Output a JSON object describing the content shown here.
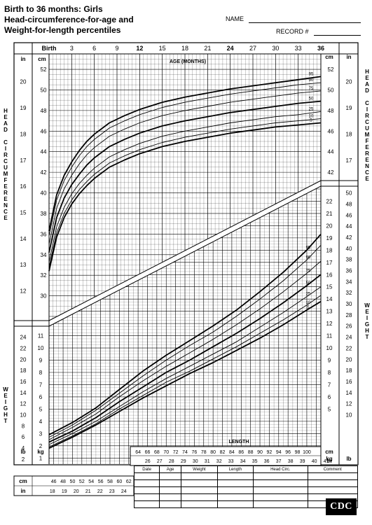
{
  "header": {
    "title_lines": [
      "Birth to 36 months: Girls",
      "Head-circumference-for-age and",
      "Weight-for-length percentiles"
    ],
    "name_label": "NAME",
    "record_label": "RECORD #"
  },
  "side_labels": {
    "head_circumference": "HEAD CIRCUMFERENCE",
    "weight": "WEIGHT"
  },
  "record_table": {
    "columns": [
      "Date",
      "Age",
      "Weight",
      "Length",
      "Head Circ.",
      "Comment"
    ],
    "row_count": 5
  },
  "logo": {
    "text": "CDC"
  },
  "chart_data": [
    {
      "type": "line",
      "title": "Head-circumference-for-age",
      "xlabel": "AGE (MONTHS)",
      "x_unit": "months",
      "xlim": [
        0,
        36
      ],
      "x_ticks": [
        {
          "value": 0,
          "label": "Birth"
        },
        {
          "value": 3,
          "label": "3"
        },
        {
          "value": 6,
          "label": "6"
        },
        {
          "value": 9,
          "label": "9"
        },
        {
          "value": 12,
          "label": "12"
        },
        {
          "value": 15,
          "label": "15"
        },
        {
          "value": 18,
          "label": "18"
        },
        {
          "value": 21,
          "label": "21"
        },
        {
          "value": 24,
          "label": "24"
        },
        {
          "value": 27,
          "label": "27"
        },
        {
          "value": 30,
          "label": "30"
        },
        {
          "value": 33,
          "label": "33"
        },
        {
          "value": 36,
          "label": "36"
        }
      ],
      "y_cm_ticks": [
        30,
        32,
        34,
        36,
        38,
        40,
        42,
        44,
        46,
        48,
        50,
        52
      ],
      "y_in_ticks": [
        12,
        13,
        14,
        15,
        16,
        17,
        18,
        19,
        20
      ],
      "y_cm_label": "cm",
      "y_in_label": "in",
      "ylim_cm": [
        28,
        53.5
      ],
      "grid": true,
      "x": [
        0,
        1,
        2,
        3,
        4,
        5,
        6,
        8,
        10,
        12,
        15,
        18,
        21,
        24,
        27,
        30,
        33,
        36
      ],
      "series": [
        {
          "name": "95",
          "values": [
            36.3,
            39.8,
            41.7,
            43.0,
            44.1,
            45.0,
            45.7,
            46.8,
            47.5,
            48.1,
            48.8,
            49.3,
            49.7,
            50.1,
            50.4,
            50.7,
            51.0,
            51.3
          ]
        },
        {
          "name": "90",
          "values": [
            35.8,
            39.3,
            41.2,
            42.5,
            43.6,
            44.5,
            45.2,
            46.3,
            47.0,
            47.6,
            48.3,
            48.8,
            49.2,
            49.6,
            49.9,
            50.2,
            50.5,
            50.7
          ]
        },
        {
          "name": "75",
          "values": [
            35.0,
            38.5,
            40.4,
            41.7,
            42.8,
            43.7,
            44.4,
            45.5,
            46.2,
            46.8,
            47.5,
            48.0,
            48.4,
            48.8,
            49.1,
            49.4,
            49.7,
            49.9
          ]
        },
        {
          "name": "50",
          "values": [
            34.2,
            37.6,
            39.5,
            40.8,
            41.8,
            42.7,
            43.4,
            44.5,
            45.2,
            45.8,
            46.5,
            47.0,
            47.4,
            47.8,
            48.1,
            48.4,
            48.7,
            48.9
          ]
        },
        {
          "name": "25",
          "values": [
            33.3,
            36.7,
            38.6,
            39.9,
            40.9,
            41.7,
            42.4,
            43.5,
            44.2,
            44.8,
            45.5,
            46.0,
            46.4,
            46.8,
            47.1,
            47.4,
            47.6,
            47.9
          ]
        },
        {
          "name": "10",
          "values": [
            32.8,
            36.1,
            38.0,
            39.3,
            40.3,
            41.1,
            41.8,
            42.9,
            43.6,
            44.2,
            44.9,
            45.4,
            45.8,
            46.2,
            46.5,
            46.8,
            47.0,
            47.2
          ]
        },
        {
          "name": "5",
          "values": [
            32.4,
            35.7,
            37.6,
            38.9,
            39.9,
            40.7,
            41.4,
            42.5,
            43.2,
            43.8,
            44.5,
            45.0,
            45.4,
            45.8,
            46.1,
            46.4,
            46.6,
            46.8
          ]
        }
      ]
    },
    {
      "type": "line",
      "title": "Weight-for-length",
      "xlabel": "LENGTH",
      "x_unit": "cm",
      "xlim": [
        45,
        103
      ],
      "x_cm_ticks_bottom": [
        46,
        48,
        50,
        52,
        54,
        56,
        58,
        60,
        62
      ],
      "x_in_ticks_bottom": [
        18,
        19,
        20,
        21,
        22,
        23,
        24
      ],
      "x_cm_ticks_top": [
        64,
        66,
        68,
        70,
        72,
        74,
        76,
        78,
        80,
        82,
        84,
        86,
        88,
        90,
        92,
        94,
        96,
        98,
        100
      ],
      "x_in_ticks_top": [
        26,
        27,
        28,
        29,
        30,
        31,
        32,
        33,
        34,
        35,
        36,
        37,
        38,
        39,
        40,
        41
      ],
      "x_cm_label": "cm",
      "x_in_label": "in",
      "y_kg_ticks": [
        1,
        2,
        3,
        4,
        5,
        6,
        7,
        8,
        9,
        10,
        11,
        12,
        13,
        14,
        15,
        16,
        17,
        18,
        19,
        20,
        21,
        22
      ],
      "y_lb_ticks": [
        2,
        4,
        6,
        8,
        10,
        12,
        14,
        16,
        18,
        20,
        22,
        24,
        26,
        28,
        30,
        32,
        34,
        36,
        38,
        40,
        42,
        44,
        46,
        48,
        50
      ],
      "y_kg_label": "kg",
      "y_lb_label": "lb",
      "ylim_kg": [
        0.5,
        23
      ],
      "grid": true,
      "x": [
        45,
        50,
        55,
        60,
        65,
        70,
        75,
        80,
        85,
        90,
        95,
        100,
        103
      ],
      "series": [
        {
          "name": "95",
          "values": [
            2.9,
            3.9,
            5.1,
            6.6,
            8.1,
            9.4,
            10.6,
            11.8,
            13.1,
            14.6,
            16.2,
            18.0,
            19.3
          ]
        },
        {
          "name": "90",
          "values": [
            2.7,
            3.7,
            4.9,
            6.3,
            7.7,
            9.0,
            10.2,
            11.3,
            12.6,
            14.0,
            15.5,
            17.2,
            18.4
          ]
        },
        {
          "name": "75",
          "values": [
            2.5,
            3.5,
            4.6,
            6.0,
            7.3,
            8.5,
            9.6,
            10.7,
            11.9,
            13.2,
            14.6,
            16.1,
            17.1
          ]
        },
        {
          "name": "50",
          "values": [
            2.3,
            3.2,
            4.3,
            5.6,
            6.8,
            8.0,
            9.0,
            10.1,
            11.2,
            12.4,
            13.7,
            15.1,
            16.0
          ]
        },
        {
          "name": "25",
          "values": [
            2.1,
            3.0,
            4.0,
            5.2,
            6.4,
            7.5,
            8.5,
            9.5,
            10.5,
            11.7,
            12.9,
            14.2,
            15.0
          ]
        },
        {
          "name": "10",
          "values": [
            1.9,
            2.8,
            3.8,
            5.0,
            6.1,
            7.2,
            8.1,
            9.1,
            10.1,
            11.2,
            12.3,
            13.5,
            14.3
          ]
        },
        {
          "name": "5",
          "values": [
            1.8,
            2.7,
            3.7,
            4.8,
            5.9,
            6.9,
            7.9,
            8.8,
            9.8,
            10.8,
            11.9,
            13.1,
            13.8
          ]
        }
      ]
    }
  ]
}
